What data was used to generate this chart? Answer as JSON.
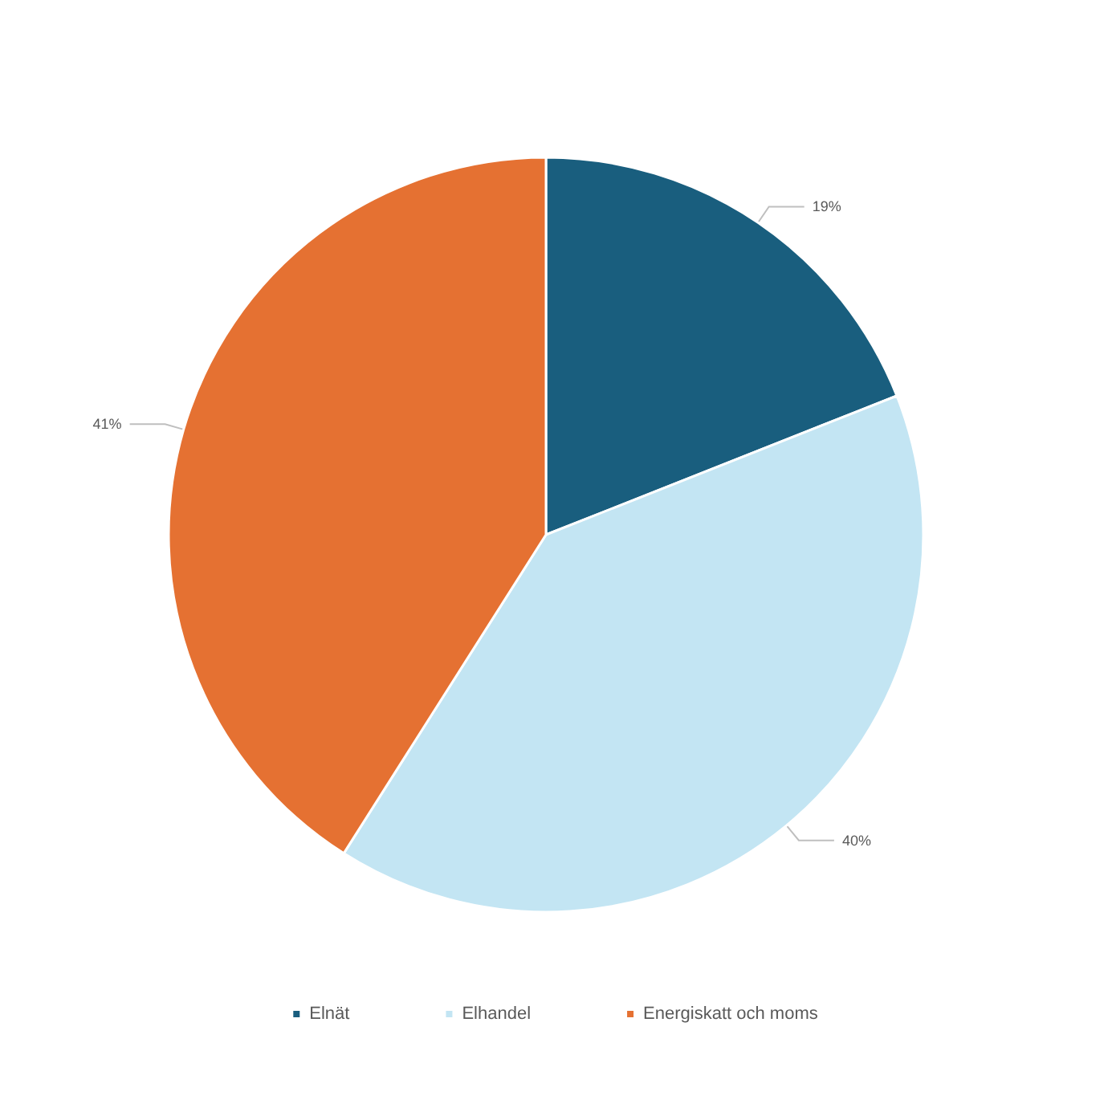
{
  "chart_data": {
    "type": "pie",
    "categories": [
      "Elnät",
      "Elhandel",
      "Energiskatt och moms"
    ],
    "values": [
      19,
      40,
      41
    ],
    "colors": [
      "#195e7e",
      "#c3e5f3",
      "#e57132"
    ],
    "value_labels": [
      "19%",
      "40%",
      "41%"
    ],
    "legend": "bottom"
  }
}
